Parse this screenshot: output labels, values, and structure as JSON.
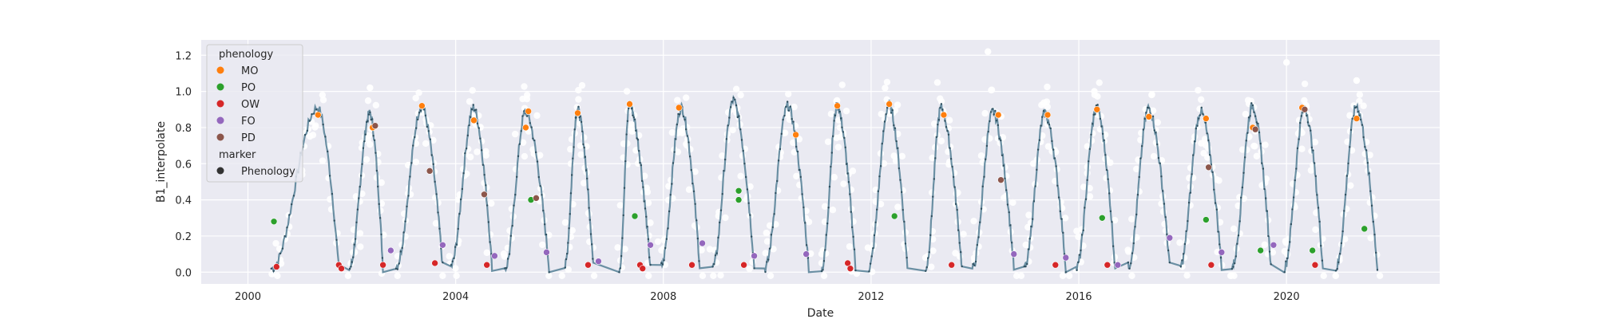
{
  "chart_data": {
    "type": "scatter",
    "title": "",
    "xlabel": "Date",
    "ylabel": "B1_interpolate",
    "xlim": [
      1999.1,
      2022.95
    ],
    "ylim": [
      -0.065,
      1.285
    ],
    "grid": true,
    "style": "seaborn-darkgrid",
    "x_ticks": [
      2000,
      2004,
      2008,
      2012,
      2016,
      2020
    ],
    "x_tick_labels": [
      "2000",
      "2004",
      "2008",
      "2012",
      "2016",
      "2020"
    ],
    "y_ticks": [
      0.0,
      0.2,
      0.4,
      0.6,
      0.8,
      1.0,
      1.2
    ],
    "y_tick_labels": [
      "0.0",
      "0.2",
      "0.4",
      "0.6",
      "0.8",
      "1.0",
      "1.2"
    ],
    "legend": {
      "placement": "upper left",
      "title": "phenology",
      "entries": [
        {
          "label": "MO",
          "color": "#ff7f0e"
        },
        {
          "label": "PO",
          "color": "#2ca02c"
        },
        {
          "label": "OW",
          "color": "#d62728"
        },
        {
          "label": "FO",
          "color": "#9467bd"
        },
        {
          "label": "PD",
          "color": "#8c564b"
        }
      ],
      "marker_title": "marker",
      "marker_entries": [
        {
          "label": "Phenology",
          "color": "#333333"
        }
      ]
    },
    "series": [
      {
        "role": "interpolated line",
        "color": "#6a8fa3",
        "cycles": [
          {
            "start": 2000.45,
            "peak": 2001.35,
            "pv": 0.91,
            "min": 0.02,
            "end": 2001.75
          },
          {
            "start": 2001.95,
            "peak": 2002.35,
            "pv": 0.88,
            "min": 0.02,
            "end": 2002.6
          },
          {
            "start": 2002.85,
            "peak": 2003.35,
            "pv": 0.92,
            "min": 0.03,
            "end": 2003.75
          },
          {
            "start": 2003.9,
            "peak": 2004.35,
            "pv": 0.91,
            "min": 0.03,
            "end": 2004.7
          },
          {
            "start": 2004.95,
            "peak": 2005.35,
            "pv": 0.89,
            "min": 0.02,
            "end": 2005.8
          },
          {
            "start": 2006.1,
            "peak": 2006.35,
            "pv": 0.9,
            "min": 0.03,
            "end": 2006.65
          },
          {
            "start": 2007.15,
            "peak": 2007.35,
            "pv": 0.93,
            "min": 0.02,
            "end": 2007.75
          },
          {
            "start": 2007.95,
            "peak": 2008.35,
            "pv": 0.91,
            "min": 0.03,
            "end": 2008.7
          },
          {
            "start": 2008.95,
            "peak": 2009.35,
            "pv": 0.95,
            "min": 0.03,
            "end": 2009.75
          },
          {
            "start": 2009.95,
            "peak": 2010.4,
            "pv": 0.92,
            "min": 0.02,
            "end": 2010.8
          },
          {
            "start": 2011.05,
            "peak": 2011.35,
            "pv": 0.92,
            "min": 0.02,
            "end": 2011.7
          },
          {
            "start": 2011.95,
            "peak": 2012.35,
            "pv": 0.93,
            "min": 0.02,
            "end": 2012.7
          },
          {
            "start": 2013.05,
            "peak": 2013.35,
            "pv": 0.91,
            "min": 0.02,
            "end": 2013.75
          },
          {
            "start": 2013.95,
            "peak": 2014.35,
            "pv": 0.89,
            "min": 0.02,
            "end": 2014.75
          },
          {
            "start": 2014.95,
            "peak": 2015.35,
            "pv": 0.88,
            "min": 0.02,
            "end": 2015.75
          },
          {
            "start": 2015.95,
            "peak": 2016.35,
            "pv": 0.91,
            "min": 0.02,
            "end": 2016.7
          },
          {
            "start": 2016.95,
            "peak": 2017.35,
            "pv": 0.91,
            "min": 0.03,
            "end": 2017.75
          },
          {
            "start": 2017.95,
            "peak": 2018.35,
            "pv": 0.89,
            "min": 0.03,
            "end": 2018.75
          },
          {
            "start": 2018.95,
            "peak": 2019.35,
            "pv": 0.92,
            "min": 0.03,
            "end": 2019.7
          },
          {
            "start": 2019.95,
            "peak": 2020.35,
            "pv": 0.91,
            "min": 0.02,
            "end": 2020.7
          },
          {
            "start": 2020.95,
            "peak": 2021.35,
            "pv": 0.92,
            "min": 0.02,
            "end": 2021.75
          }
        ]
      },
      {
        "role": "raw observations",
        "color": "#ffffff",
        "extra_points": [
          {
            "x": 2014.25,
            "y": 1.22
          },
          {
            "x": 2020.0,
            "y": 1.16
          },
          {
            "x": 2021.35,
            "y": 1.06
          },
          {
            "x": 2002.35,
            "y": 1.02
          },
          {
            "x": 2016.3,
            "y": 1.0
          }
        ]
      }
    ],
    "phenology_points": [
      {
        "label": "MO",
        "x": 2001.35,
        "y": 0.87
      },
      {
        "label": "MO",
        "x": 2002.4,
        "y": 0.8
      },
      {
        "label": "MO",
        "x": 2003.35,
        "y": 0.92
      },
      {
        "label": "MO",
        "x": 2004.35,
        "y": 0.84
      },
      {
        "label": "MO",
        "x": 2005.35,
        "y": 0.8
      },
      {
        "label": "MO",
        "x": 2005.4,
        "y": 0.89
      },
      {
        "label": "MO",
        "x": 2006.35,
        "y": 0.88
      },
      {
        "label": "MO",
        "x": 2007.35,
        "y": 0.93
      },
      {
        "label": "MO",
        "x": 2008.3,
        "y": 0.91
      },
      {
        "label": "MO",
        "x": 2010.55,
        "y": 0.76
      },
      {
        "label": "MO",
        "x": 2011.35,
        "y": 0.92
      },
      {
        "label": "MO",
        "x": 2012.35,
        "y": 0.93
      },
      {
        "label": "MO",
        "x": 2013.4,
        "y": 0.87
      },
      {
        "label": "MO",
        "x": 2014.45,
        "y": 0.87
      },
      {
        "label": "MO",
        "x": 2015.4,
        "y": 0.87
      },
      {
        "label": "MO",
        "x": 2016.35,
        "y": 0.9
      },
      {
        "label": "MO",
        "x": 2017.35,
        "y": 0.86
      },
      {
        "label": "MO",
        "x": 2018.45,
        "y": 0.85
      },
      {
        "label": "MO",
        "x": 2019.35,
        "y": 0.8
      },
      {
        "label": "MO",
        "x": 2020.3,
        "y": 0.91
      },
      {
        "label": "MO",
        "x": 2021.35,
        "y": 0.85
      },
      {
        "label": "PO",
        "x": 2000.5,
        "y": 0.28
      },
      {
        "label": "PO",
        "x": 2005.45,
        "y": 0.4
      },
      {
        "label": "PO",
        "x": 2007.45,
        "y": 0.31
      },
      {
        "label": "PO",
        "x": 2009.45,
        "y": 0.45
      },
      {
        "label": "PO",
        "x": 2009.45,
        "y": 0.4
      },
      {
        "label": "PO",
        "x": 2012.45,
        "y": 0.31
      },
      {
        "label": "PO",
        "x": 2016.45,
        "y": 0.3
      },
      {
        "label": "PO",
        "x": 2018.45,
        "y": 0.29
      },
      {
        "label": "PO",
        "x": 2019.5,
        "y": 0.12
      },
      {
        "label": "PO",
        "x": 2020.5,
        "y": 0.12
      },
      {
        "label": "PO",
        "x": 2021.5,
        "y": 0.24
      },
      {
        "label": "OW",
        "x": 2000.55,
        "y": 0.03
      },
      {
        "label": "OW",
        "x": 2001.75,
        "y": 0.04
      },
      {
        "label": "OW",
        "x": 2001.8,
        "y": 0.02
      },
      {
        "label": "OW",
        "x": 2002.6,
        "y": 0.04
      },
      {
        "label": "OW",
        "x": 2003.6,
        "y": 0.05
      },
      {
        "label": "OW",
        "x": 2004.6,
        "y": 0.04
      },
      {
        "label": "OW",
        "x": 2006.55,
        "y": 0.04
      },
      {
        "label": "OW",
        "x": 2007.55,
        "y": 0.04
      },
      {
        "label": "OW",
        "x": 2007.6,
        "y": 0.02
      },
      {
        "label": "OW",
        "x": 2008.55,
        "y": 0.04
      },
      {
        "label": "OW",
        "x": 2009.55,
        "y": 0.04
      },
      {
        "label": "OW",
        "x": 2011.55,
        "y": 0.05
      },
      {
        "label": "OW",
        "x": 2011.6,
        "y": 0.02
      },
      {
        "label": "OW",
        "x": 2013.55,
        "y": 0.04
      },
      {
        "label": "OW",
        "x": 2015.55,
        "y": 0.04
      },
      {
        "label": "OW",
        "x": 2016.55,
        "y": 0.04
      },
      {
        "label": "OW",
        "x": 2018.55,
        "y": 0.04
      },
      {
        "label": "OW",
        "x": 2020.55,
        "y": 0.04
      },
      {
        "label": "FO",
        "x": 2002.75,
        "y": 0.12
      },
      {
        "label": "FO",
        "x": 2003.75,
        "y": 0.15
      },
      {
        "label": "FO",
        "x": 2004.75,
        "y": 0.09
      },
      {
        "label": "FO",
        "x": 2005.75,
        "y": 0.11
      },
      {
        "label": "FO",
        "x": 2006.75,
        "y": 0.06
      },
      {
        "label": "FO",
        "x": 2007.75,
        "y": 0.15
      },
      {
        "label": "FO",
        "x": 2008.75,
        "y": 0.16
      },
      {
        "label": "FO",
        "x": 2009.75,
        "y": 0.09
      },
      {
        "label": "FO",
        "x": 2010.75,
        "y": 0.1
      },
      {
        "label": "FO",
        "x": 2014.75,
        "y": 0.1
      },
      {
        "label": "FO",
        "x": 2015.75,
        "y": 0.08
      },
      {
        "label": "FO",
        "x": 2016.75,
        "y": 0.04
      },
      {
        "label": "FO",
        "x": 2017.75,
        "y": 0.19
      },
      {
        "label": "FO",
        "x": 2018.75,
        "y": 0.11
      },
      {
        "label": "FO",
        "x": 2019.75,
        "y": 0.15
      },
      {
        "label": "PD",
        "x": 2002.45,
        "y": 0.81
      },
      {
        "label": "PD",
        "x": 2003.5,
        "y": 0.56
      },
      {
        "label": "PD",
        "x": 2004.55,
        "y": 0.43
      },
      {
        "label": "PD",
        "x": 2005.55,
        "y": 0.41
      },
      {
        "label": "PD",
        "x": 2014.5,
        "y": 0.51
      },
      {
        "label": "PD",
        "x": 2018.5,
        "y": 0.58
      },
      {
        "label": "PD",
        "x": 2019.4,
        "y": 0.79
      },
      {
        "label": "PD",
        "x": 2020.35,
        "y": 0.9
      }
    ]
  }
}
